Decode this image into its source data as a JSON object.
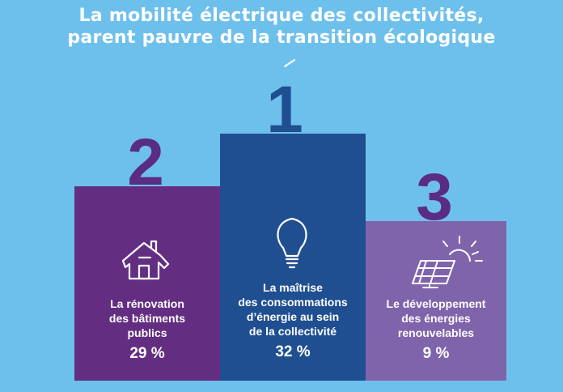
{
  "title": {
    "line1": "La mobilité électrique des collectivités,",
    "line2": "parent pauvre de la transition écologique"
  },
  "colors": {
    "background": "#6ec0ec",
    "rank2": "#632e82",
    "rank1": "#1f4f91",
    "rank3": "#8064ab",
    "rank_number": "#5a2c84"
  },
  "chart_data": {
    "type": "bar",
    "categories": [
      "La rénovation des bâtiments publics",
      "La maîtrise des consommations d’énergie au sein de la collectivité",
      "Le développement des énergies renouvelables"
    ],
    "values": [
      29,
      32,
      9
    ],
    "value_labels": [
      "29 %",
      "32 %",
      "9 %"
    ],
    "ranks": [
      "2",
      "1",
      "3"
    ],
    "icons": [
      "house-icon",
      "lightbulb-icon",
      "solar-panel-icon"
    ],
    "ylim": [
      0,
      32
    ]
  },
  "blocks": [
    {
      "rank": "2",
      "label": "La rénovation\ndes bâtiments\npublics",
      "value": "29 %"
    },
    {
      "rank": "1",
      "label": "La maîtrise\ndes consommations\nd’énergie au sein\nde la collectivité",
      "value": "32 %"
    },
    {
      "rank": "3",
      "label": "Le développement\ndes énergies\nrenouvelables",
      "value": "9 %"
    }
  ]
}
